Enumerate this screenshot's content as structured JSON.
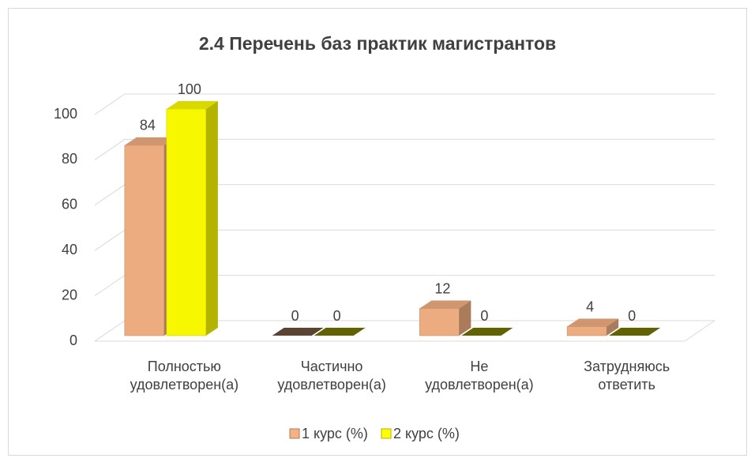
{
  "chart_data": {
    "type": "bar3d",
    "title": "2.4 Перечень баз практик магистрантов",
    "categories": [
      [
        "Полностью",
        "удовлетворен(а)"
      ],
      [
        "Частично",
        "удовлетворен(а)"
      ],
      [
        "Не",
        "удовлетворен(а)"
      ],
      [
        "Затрудняюсь",
        "ответить"
      ]
    ],
    "series": [
      {
        "name": "1 курс (%)",
        "color": "#f4b183",
        "values": [
          84,
          0,
          12,
          4
        ]
      },
      {
        "name": "2 курс (%)",
        "color": "#ffff00",
        "values": [
          100,
          0,
          0,
          0
        ]
      }
    ],
    "ylim": [
      0,
      100
    ],
    "yticks": [
      0,
      20,
      40,
      60,
      80,
      100
    ],
    "grid": true,
    "legend": "bottom"
  }
}
